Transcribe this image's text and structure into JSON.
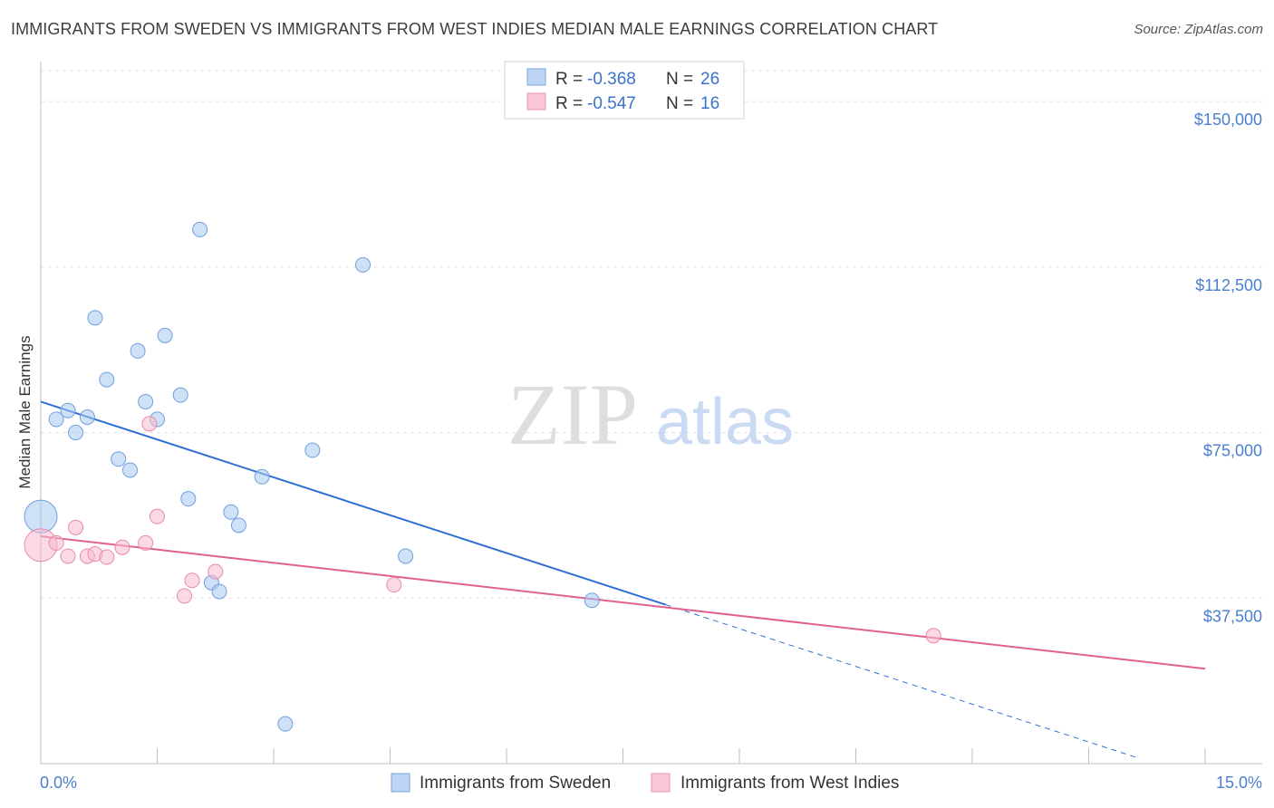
{
  "title": "IMMIGRANTS FROM SWEDEN VS IMMIGRANTS FROM WEST INDIES MEDIAN MALE EARNINGS CORRELATION CHART",
  "source": "Source: ZipAtlas.com",
  "watermark": {
    "zip": "ZIP",
    "atlas": "atlas"
  },
  "chart_data": {
    "type": "scatter",
    "ylabel": "Median Male Earnings",
    "x_ticks": [
      "0.0%",
      "15.0%"
    ],
    "y_ticks": [
      "$150,000",
      "$112,500",
      "$75,000",
      "$37,500"
    ],
    "y_tick_values": [
      150000,
      112500,
      75000,
      37500
    ],
    "xlim": [
      0,
      15
    ],
    "ylim": [
      0,
      157000
    ],
    "legend_position": "top-center",
    "stats": [
      {
        "r_label": "R = ",
        "r_value": "-0.368",
        "n_label": "N = ",
        "n_value": "26"
      },
      {
        "r_label": "R = ",
        "r_value": "-0.547",
        "n_label": "N = ",
        "n_value": "16"
      }
    ],
    "series": [
      {
        "name": "Immigrants from Sweden",
        "color": "#a8c8f0",
        "stroke": "#6f9fdc",
        "line_color": "#2f6fd4",
        "points": [
          {
            "x": 0.0,
            "y": 56000,
            "big": true
          },
          {
            "x": 0.2,
            "y": 78000
          },
          {
            "x": 0.35,
            "y": 80000
          },
          {
            "x": 0.45,
            "y": 75000
          },
          {
            "x": 0.6,
            "y": 78500
          },
          {
            "x": 0.7,
            "y": 101000
          },
          {
            "x": 0.85,
            "y": 87000
          },
          {
            "x": 1.0,
            "y": 69000
          },
          {
            "x": 1.15,
            "y": 66500
          },
          {
            "x": 1.25,
            "y": 93500
          },
          {
            "x": 1.35,
            "y": 82000
          },
          {
            "x": 1.5,
            "y": 78000
          },
          {
            "x": 1.6,
            "y": 97000
          },
          {
            "x": 1.8,
            "y": 83500
          },
          {
            "x": 1.9,
            "y": 60000
          },
          {
            "x": 2.05,
            "y": 121000
          },
          {
            "x": 2.2,
            "y": 41000
          },
          {
            "x": 2.3,
            "y": 39000
          },
          {
            "x": 2.45,
            "y": 57000
          },
          {
            "x": 2.55,
            "y": 54000
          },
          {
            "x": 2.85,
            "y": 65000
          },
          {
            "x": 3.15,
            "y": 9000
          },
          {
            "x": 3.5,
            "y": 71000
          },
          {
            "x": 4.15,
            "y": 113000
          },
          {
            "x": 4.7,
            "y": 47000
          },
          {
            "x": 7.1,
            "y": 37000
          }
        ],
        "trend": {
          "x0": 0.0,
          "y0": 82000,
          "x1": 8.05,
          "y1": 36000,
          "x_dash_end": 14.15,
          "y_dash_end": 1200
        }
      },
      {
        "name": "Immigrants from West Indies",
        "color": "#f7bcd0",
        "stroke": "#e88aaa",
        "line_color": "#e0608e",
        "points": [
          {
            "x": 0.0,
            "y": 49500,
            "big": true
          },
          {
            "x": 0.2,
            "y": 50000
          },
          {
            "x": 0.35,
            "y": 47000
          },
          {
            "x": 0.45,
            "y": 53500
          },
          {
            "x": 0.6,
            "y": 47000
          },
          {
            "x": 0.7,
            "y": 47500
          },
          {
            "x": 0.85,
            "y": 46800
          },
          {
            "x": 1.05,
            "y": 49000
          },
          {
            "x": 1.35,
            "y": 50000
          },
          {
            "x": 1.5,
            "y": 56000
          },
          {
            "x": 1.4,
            "y": 77000
          },
          {
            "x": 1.85,
            "y": 38000
          },
          {
            "x": 1.95,
            "y": 41500
          },
          {
            "x": 2.25,
            "y": 43500
          },
          {
            "x": 4.55,
            "y": 40500
          },
          {
            "x": 11.5,
            "y": 29000
          }
        ],
        "trend": {
          "x0": 0.0,
          "y0": 51500,
          "x1": 15.0,
          "y1": 21500
        }
      }
    ]
  }
}
